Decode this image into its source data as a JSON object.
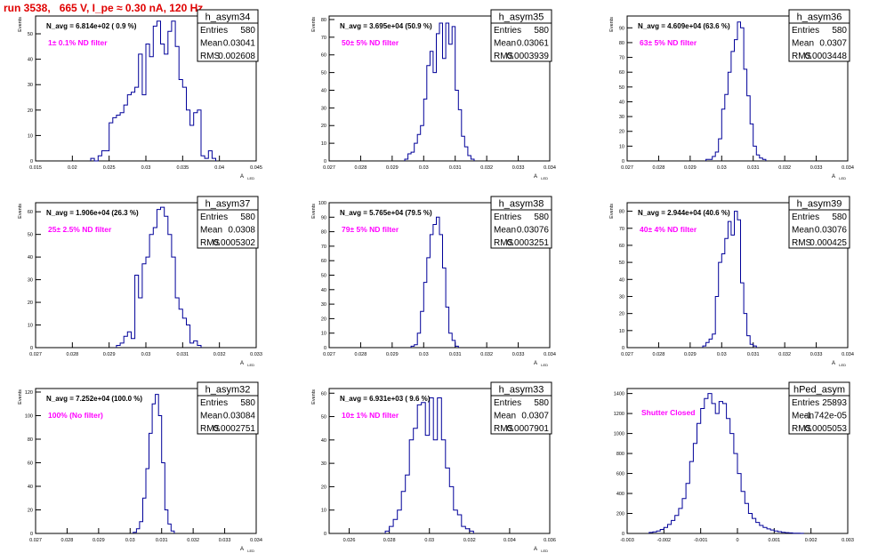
{
  "page_title": "run 3538,   665 V, I_pe ≈ 0.30 nA, 120 Hz",
  "colors": {
    "title": "#e00000",
    "filter_label": "#ff00ff",
    "histogram_line": "#000099",
    "axis": "#000000"
  },
  "chart_data": [
    {
      "type": "histogram",
      "name": "h_asym34",
      "entries": "580",
      "mean": "0.03041",
      "rms": "0.002608",
      "n_avg": "N_avg = 6.814e+02 ( 0.9 %)",
      "filter": "1± 0.1% ND filter",
      "xlabel": "A_LED",
      "ylabel": "Events",
      "xlim": [
        0.015,
        0.045
      ],
      "ylim": [
        0,
        57
      ],
      "xticks": [
        0.015,
        0.02,
        0.025,
        0.03,
        0.035,
        0.04,
        0.045
      ],
      "xtick_labels": [
        "0.015",
        "0.02",
        "0.025",
        "0.03",
        "0.035",
        "0.04",
        "0.045"
      ],
      "yticks": [
        0,
        10,
        20,
        30,
        40,
        50
      ],
      "ytick_labels": [
        "0",
        "10",
        "20",
        "30",
        "40",
        "50"
      ],
      "bin_width": 0.0005,
      "bin_start": 0.0225,
      "counts": [
        1,
        0,
        2,
        4,
        4,
        15,
        17,
        18,
        19,
        22,
        26,
        27,
        29,
        42,
        26,
        46,
        41,
        53,
        55,
        46,
        42,
        51,
        55,
        45,
        32,
        29,
        20,
        14,
        19,
        20,
        2,
        1,
        4,
        1
      ]
    },
    {
      "type": "histogram",
      "name": "h_asym35",
      "entries": "580",
      "mean": "0.03061",
      "rms": "0.0003939",
      "n_avg": "N_avg = 3.695e+04 (50.9 %)",
      "filter": "50± 5% ND filter",
      "xlabel": "A_LED",
      "ylabel": "Events",
      "xlim": [
        0.027,
        0.034
      ],
      "ylim": [
        0,
        82
      ],
      "xticks": [
        0.027,
        0.028,
        0.029,
        0.03,
        0.031,
        0.032,
        0.033,
        0.034
      ],
      "xtick_labels": [
        "0.027",
        "0.028",
        "0.029",
        "0.03",
        "0.031",
        "0.032",
        "0.033",
        "0.034"
      ],
      "yticks": [
        0,
        10,
        20,
        30,
        40,
        50,
        60,
        70,
        80
      ],
      "ytick_labels": [
        "0",
        "10",
        "20",
        "30",
        "40",
        "50",
        "60",
        "70",
        "80"
      ],
      "bin_width": 0.0001,
      "bin_start": 0.0294,
      "counts": [
        1,
        4,
        5,
        10,
        15,
        20,
        35,
        54,
        62,
        50,
        72,
        78,
        58,
        78,
        66,
        76,
        40,
        29,
        14,
        8,
        3,
        1
      ]
    },
    {
      "type": "histogram",
      "name": "h_asym36",
      "entries": "580",
      "mean": "0.0307",
      "rms": "0.0003448",
      "n_avg": "N_avg = 4.609e+04 (63.6 %)",
      "filter": "63± 5% ND filter",
      "xlabel": "A_LED",
      "ylabel": "Events",
      "xlim": [
        0.027,
        0.034
      ],
      "ylim": [
        0,
        98
      ],
      "xticks": [
        0.027,
        0.028,
        0.029,
        0.03,
        0.031,
        0.032,
        0.033,
        0.034
      ],
      "xtick_labels": [
        "0.027",
        "0.028",
        "0.029",
        "0.03",
        "0.031",
        "0.032",
        "0.033",
        "0.034"
      ],
      "yticks": [
        0,
        10,
        20,
        30,
        40,
        50,
        60,
        70,
        80,
        90
      ],
      "ytick_labels": [
        "0",
        "10",
        "20",
        "30",
        "40",
        "50",
        "60",
        "70",
        "80",
        "90"
      ],
      "bin_width": 0.0001,
      "bin_start": 0.0295,
      "counts": [
        1,
        1,
        3,
        6,
        15,
        35,
        45,
        60,
        74,
        82,
        94,
        90,
        62,
        44,
        25,
        10,
        4,
        2,
        1
      ]
    },
    {
      "type": "histogram",
      "name": "h_asym37",
      "entries": "580",
      "mean": "0.0308",
      "rms": "0.0005302",
      "n_avg": "N_avg = 1.906e+04 (26.3 %)",
      "filter": "25± 2.5% ND filter",
      "xlabel": "A_LED",
      "ylabel": "Events",
      "xlim": [
        0.027,
        0.033
      ],
      "ylim": [
        0,
        64
      ],
      "xticks": [
        0.027,
        0.028,
        0.029,
        0.03,
        0.031,
        0.032,
        0.033
      ],
      "xtick_labels": [
        "0.027",
        "0.028",
        "0.029",
        "0.03",
        "0.031",
        "0.032",
        "0.033"
      ],
      "yticks": [
        0,
        10,
        20,
        30,
        40,
        50,
        60
      ],
      "ytick_labels": [
        "0",
        "10",
        "20",
        "30",
        "40",
        "50",
        "60"
      ],
      "bin_width": 0.0001,
      "bin_start": 0.0292,
      "counts": [
        1,
        2,
        5,
        7,
        4,
        32,
        22,
        37,
        40,
        50,
        53,
        61,
        62,
        58,
        50,
        40,
        22,
        17,
        13,
        10,
        2,
        3,
        1
      ]
    },
    {
      "type": "histogram",
      "name": "h_asym38",
      "entries": "580",
      "mean": "0.03076",
      "rms": "0.0003251",
      "n_avg": "N_avg = 5.765e+04 (79.5 %)",
      "filter": "79± 5% ND filter",
      "xlabel": "A_LED",
      "ylabel": "Events",
      "xlim": [
        0.027,
        0.034
      ],
      "ylim": [
        0,
        100
      ],
      "xticks": [
        0.027,
        0.028,
        0.029,
        0.03,
        0.031,
        0.032,
        0.033,
        0.034
      ],
      "xtick_labels": [
        "0.027",
        "0.028",
        "0.029",
        "0.03",
        "0.031",
        "0.032",
        "0.033",
        "0.034"
      ],
      "yticks": [
        0,
        10,
        20,
        30,
        40,
        50,
        60,
        70,
        80,
        90,
        100
      ],
      "ytick_labels": [
        "0",
        "10",
        "20",
        "30",
        "40",
        "50",
        "60",
        "70",
        "80",
        "90",
        "100"
      ],
      "bin_width": 0.0001,
      "bin_start": 0.0296,
      "counts": [
        1,
        2,
        10,
        25,
        45,
        62,
        78,
        85,
        90,
        78,
        55,
        28,
        10,
        5,
        1
      ]
    },
    {
      "type": "histogram",
      "name": "h_asym39",
      "entries": "580",
      "mean": "0.03076",
      "rms": "0.000425",
      "n_avg": "N_avg = 2.944e+04 (40.6 %)",
      "filter": "40± 4% ND filter",
      "xlabel": "A_LED",
      "ylabel": "Events",
      "xlim": [
        0.027,
        0.034
      ],
      "ylim": [
        0,
        85
      ],
      "xticks": [
        0.027,
        0.028,
        0.029,
        0.03,
        0.031,
        0.032,
        0.033,
        0.034
      ],
      "xtick_labels": [
        "0.027",
        "0.028",
        "0.029",
        "0.03",
        "0.031",
        "0.032",
        "0.033",
        "0.034"
      ],
      "yticks": [
        0,
        10,
        20,
        30,
        40,
        50,
        60,
        70,
        80
      ],
      "ytick_labels": [
        "0",
        "10",
        "20",
        "30",
        "40",
        "50",
        "60",
        "70",
        "80"
      ],
      "bin_width": 0.0001,
      "bin_start": 0.0294,
      "counts": [
        1,
        3,
        5,
        8,
        30,
        50,
        55,
        64,
        74,
        66,
        80,
        75,
        38,
        20,
        7,
        2,
        1
      ]
    },
    {
      "type": "histogram",
      "name": "h_asym32",
      "entries": "580",
      "mean": "0.03084",
      "rms": "0.0002751",
      "n_avg": "N_avg = 7.252e+04 (100.0 %)",
      "filter": "100% (No filter)",
      "xlabel": "A_LED",
      "ylabel": "Events",
      "xlim": [
        0.027,
        0.034
      ],
      "ylim": [
        0,
        123
      ],
      "xticks": [
        0.027,
        0.028,
        0.029,
        0.03,
        0.031,
        0.032,
        0.033,
        0.034
      ],
      "xtick_labels": [
        "0.027",
        "0.028",
        "0.029",
        "0.03",
        "0.031",
        "0.032",
        "0.033",
        "0.034"
      ],
      "yticks": [
        0,
        20,
        40,
        60,
        80,
        100,
        120
      ],
      "ytick_labels": [
        "0",
        "20",
        "40",
        "60",
        "80",
        "100",
        "120"
      ],
      "bin_width": 0.0001,
      "bin_start": 0.0301,
      "counts": [
        1,
        4,
        10,
        30,
        55,
        85,
        110,
        118,
        100,
        60,
        20,
        8,
        2
      ]
    },
    {
      "type": "histogram",
      "name": "h_asym33",
      "entries": "580",
      "mean": "0.0307",
      "rms": "0.0007901",
      "n_avg": "N_avg = 6.931e+03 ( 9.6 %)",
      "filter": "10± 1% ND filter",
      "xlabel": "A_LED",
      "ylabel": "Events",
      "xlim": [
        0.025,
        0.036
      ],
      "ylim": [
        0,
        62
      ],
      "xticks": [
        0.026,
        0.028,
        0.03,
        0.032,
        0.034,
        0.036
      ],
      "xtick_labels": [
        "0.026",
        "0.028",
        "0.03",
        "0.032",
        "0.034",
        "0.036"
      ],
      "yticks": [
        0,
        10,
        20,
        30,
        40,
        50,
        60
      ],
      "ytick_labels": [
        "0",
        "10",
        "20",
        "30",
        "40",
        "50",
        "60"
      ],
      "bin_width": 0.0002,
      "bin_start": 0.0278,
      "counts": [
        1,
        3,
        6,
        10,
        18,
        25,
        40,
        45,
        55,
        56,
        42,
        58,
        40,
        58,
        40,
        28,
        20,
        10,
        8,
        3,
        2,
        1
      ]
    },
    {
      "type": "histogram",
      "name": "hPed_asym",
      "entries": "25893",
      "mean": "-1.742e-05",
      "rms": "0.0005053",
      "n_avg": "",
      "filter": "Shutter Closed",
      "xlabel": "",
      "ylabel": "",
      "xlim": [
        -0.003,
        0.003
      ],
      "ylim": [
        0,
        1450
      ],
      "xticks": [
        -0.003,
        -0.002,
        -0.001,
        0,
        0.001,
        0.002,
        0.003
      ],
      "xtick_labels": [
        "-0.003",
        "-0.002",
        "-0.001",
        "0",
        "0.001",
        "0.002",
        "0.003"
      ],
      "yticks": [
        0,
        200,
        400,
        600,
        800,
        1000,
        1200,
        1400
      ],
      "ytick_labels": [
        "0",
        "200",
        "400",
        "600",
        "800",
        "1000",
        "1200",
        "1400"
      ],
      "bin_width": 0.0001,
      "bin_start": -0.0024,
      "counts": [
        10,
        15,
        25,
        40,
        60,
        90,
        130,
        180,
        250,
        350,
        500,
        720,
        900,
        1100,
        1250,
        1350,
        1400,
        1300,
        1200,
        1320,
        1300,
        1150,
        1000,
        800,
        600,
        420,
        300,
        200,
        150,
        110,
        80,
        60,
        45,
        35,
        25,
        18,
        12,
        8,
        5,
        3,
        2,
        1
      ]
    }
  ]
}
